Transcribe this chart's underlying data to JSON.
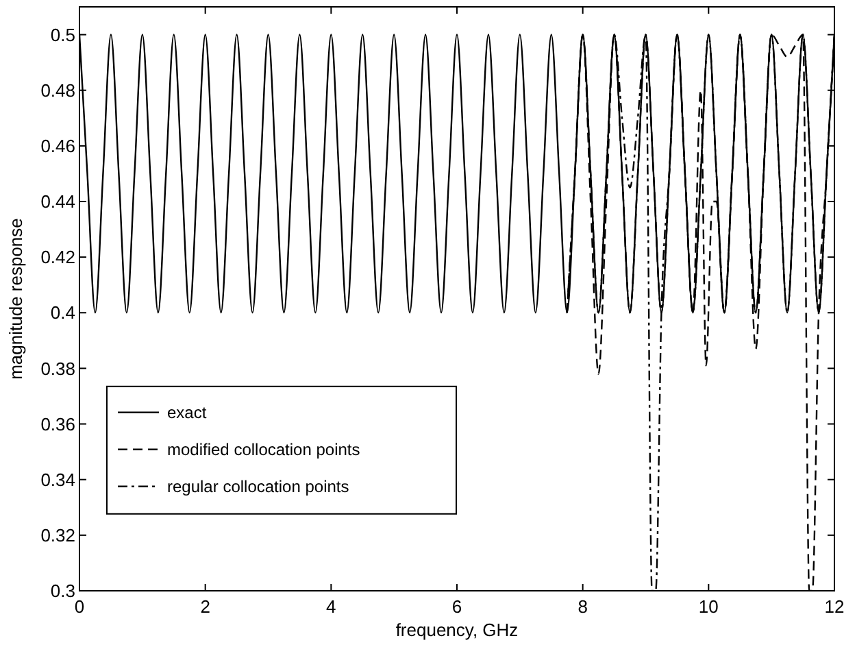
{
  "chart_data": {
    "type": "line",
    "xlabel": "frequency, GHz",
    "ylabel": "magnitude response",
    "xlim": [
      0,
      12
    ],
    "xticks": [
      0,
      2,
      4,
      6,
      8,
      10,
      12
    ],
    "ylim": [
      0.3,
      0.51
    ],
    "yticks": [
      0.3,
      0.32,
      0.34,
      0.36,
      0.38,
      0.4,
      0.42,
      0.44,
      0.46,
      0.48,
      0.5
    ],
    "grid": false,
    "legend": "left",
    "series": [
      {
        "name": "exact",
        "color": "#000000",
        "line_style": "solid",
        "x": [
          0,
          0.125,
          0.25,
          0.375,
          0.5,
          0.625,
          0.75,
          0.875,
          1,
          1.125,
          1.25,
          1.375,
          1.5,
          1.625,
          1.75,
          1.875,
          2,
          2.125,
          2.25,
          2.375,
          2.5,
          2.625,
          2.75,
          2.875,
          3,
          3.125,
          3.25,
          3.375,
          3.5,
          3.625,
          3.75,
          3.875,
          4,
          4.125,
          4.25,
          4.375,
          4.5,
          4.625,
          4.75,
          4.875,
          5,
          5.125,
          5.25,
          5.375,
          5.5,
          5.625,
          5.75,
          5.875,
          6,
          6.125,
          6.25,
          6.375,
          6.5,
          6.625,
          6.75,
          6.875,
          7,
          7.125,
          7.25,
          7.375,
          7.5,
          7.625,
          7.75,
          7.875,
          8,
          8.125,
          8.25,
          8.375,
          8.5,
          8.625,
          8.75,
          8.875,
          9,
          9.125,
          9.25,
          9.375,
          9.5,
          9.625,
          9.75,
          9.875,
          10,
          10.125,
          10.25,
          10.375,
          10.5,
          10.625,
          10.75,
          10.875,
          11,
          11.125,
          11.25,
          11.375,
          11.5,
          11.625,
          11.75,
          11.875,
          12
        ],
        "values": [
          0.5,
          0.45,
          0.4,
          0.45,
          0.5,
          0.45,
          0.4,
          0.45,
          0.5,
          0.45,
          0.4,
          0.45,
          0.5,
          0.45,
          0.4,
          0.45,
          0.5,
          0.45,
          0.4,
          0.45,
          0.5,
          0.45,
          0.4,
          0.45,
          0.5,
          0.45,
          0.4,
          0.45,
          0.5,
          0.45,
          0.4,
          0.45,
          0.5,
          0.45,
          0.4,
          0.45,
          0.5,
          0.45,
          0.4,
          0.45,
          0.5,
          0.45,
          0.4,
          0.45,
          0.5,
          0.45,
          0.4,
          0.45,
          0.5,
          0.45,
          0.4,
          0.45,
          0.5,
          0.45,
          0.4,
          0.45,
          0.5,
          0.45,
          0.4,
          0.45,
          0.5,
          0.45,
          0.4,
          0.45,
          0.5,
          0.45,
          0.4,
          0.45,
          0.5,
          0.45,
          0.4,
          0.45,
          0.5,
          0.45,
          0.4,
          0.45,
          0.5,
          0.45,
          0.4,
          0.45,
          0.5,
          0.45,
          0.4,
          0.45,
          0.5,
          0.45,
          0.4,
          0.45,
          0.5,
          0.45,
          0.4,
          0.45,
          0.5,
          0.45,
          0.4,
          0.45,
          0.5
        ]
      },
      {
        "name": "modified collocation points",
        "color": "#000000",
        "line_style": "dashed",
        "x": [
          7.75,
          7.875,
          8,
          8.125,
          8.25,
          8.375,
          8.5,
          8.625,
          8.75,
          8.875,
          9,
          9.125,
          9.25,
          9.375,
          9.5,
          9.625,
          9.75,
          9.875,
          9.96,
          10.06,
          10.125,
          10.25,
          10.375,
          10.5,
          10.625,
          10.75,
          10.875,
          11,
          11.125,
          11.25,
          11.375,
          11.5,
          11.6,
          11.65,
          11.75,
          11.875,
          12
        ],
        "values": [
          0.4,
          0.45,
          0.5,
          0.44,
          0.378,
          0.44,
          0.5,
          0.45,
          0.4,
          0.45,
          0.5,
          0.45,
          0.4,
          0.45,
          0.5,
          0.45,
          0.4,
          0.48,
          0.381,
          0.44,
          0.44,
          0.4,
          0.45,
          0.5,
          0.45,
          0.387,
          0.45,
          0.5,
          0.496,
          0.492,
          0.496,
          0.5,
          0.3,
          0.3,
          0.4,
          0.45,
          0.5
        ]
      },
      {
        "name": "regular collocation points",
        "color": "#000000",
        "line_style": "dashdot",
        "x": [
          7.75,
          7.875,
          8,
          8.125,
          8.25,
          8.375,
          8.5,
          8.625,
          8.75,
          8.875,
          9,
          9.1,
          9.16,
          9.25,
          9.375,
          9.5,
          9.625,
          9.75,
          9.875,
          10,
          10.125,
          10.25,
          10.375,
          10.5,
          10.625,
          10.75,
          10.875,
          11,
          11.125,
          11.25,
          11.375,
          11.5,
          11.625,
          11.75,
          11.875,
          12
        ],
        "values": [
          0.4,
          0.45,
          0.5,
          0.45,
          0.4,
          0.45,
          0.5,
          0.47,
          0.445,
          0.47,
          0.5,
          0.3,
          0.3,
          0.4,
          0.45,
          0.5,
          0.45,
          0.4,
          0.45,
          0.5,
          0.45,
          0.4,
          0.45,
          0.5,
          0.45,
          0.4,
          0.45,
          0.5,
          0.45,
          0.4,
          0.45,
          0.5,
          0.45,
          0.4,
          0.45,
          0.5
        ]
      }
    ]
  }
}
